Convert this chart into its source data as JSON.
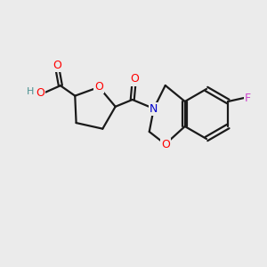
{
  "bg_color": "#ebebeb",
  "bond_color": "#1a1a1a",
  "bond_width": 1.6,
  "atom_colors": {
    "O": "#ff0000",
    "N": "#0000cc",
    "F": "#cc44cc",
    "H": "#4a9090",
    "C": "#1a1a1a"
  },
  "font_size": 9,
  "fig_size": [
    3.0,
    3.0
  ],
  "dpi": 100
}
